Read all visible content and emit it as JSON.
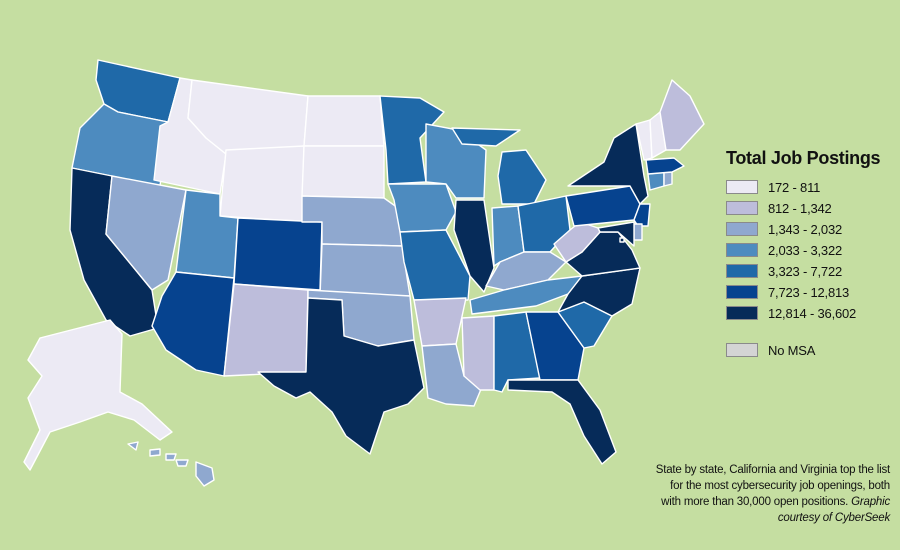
{
  "legend": {
    "title": "Total Job Postings",
    "bins": [
      {
        "label": "172 - 811",
        "color": "#eceaf4"
      },
      {
        "label": "812 - 1,342",
        "color": "#bdbddb"
      },
      {
        "label": "1,343 - 2,032",
        "color": "#8fa8cf"
      },
      {
        "label": "2,033 - 3,322",
        "color": "#4d8bbf"
      },
      {
        "label": "3,323 - 7,722",
        "color": "#1f69a8"
      },
      {
        "label": "7,723 - 12,813",
        "color": "#06438f"
      },
      {
        "label": "12,814 - 36,602",
        "color": "#062b59"
      }
    ],
    "no_msa": {
      "label": "No MSA",
      "color": "#d4d4d4"
    }
  },
  "caption": {
    "text": "State by state, California and Virginia top the list for the most cybersecurity job openings, both with more than 30,000 open positions.",
    "credit": "Graphic courtesy of CyberSeek"
  },
  "map_data": {
    "background": "#c5dea1",
    "states": [
      {
        "id": "WA",
        "bin": 4
      },
      {
        "id": "OR",
        "bin": 3
      },
      {
        "id": "CA",
        "bin": 6
      },
      {
        "id": "NV",
        "bin": 2
      },
      {
        "id": "ID",
        "bin": 0
      },
      {
        "id": "MT",
        "bin": 0
      },
      {
        "id": "WY",
        "bin": 0
      },
      {
        "id": "UT",
        "bin": 3
      },
      {
        "id": "AZ",
        "bin": 5
      },
      {
        "id": "CO",
        "bin": 5
      },
      {
        "id": "NM",
        "bin": 1
      },
      {
        "id": "ND",
        "bin": 0
      },
      {
        "id": "SD",
        "bin": 0
      },
      {
        "id": "NE",
        "bin": 2
      },
      {
        "id": "KS",
        "bin": 2
      },
      {
        "id": "OK",
        "bin": 2
      },
      {
        "id": "TX",
        "bin": 6
      },
      {
        "id": "MN",
        "bin": 4
      },
      {
        "id": "IA",
        "bin": 3
      },
      {
        "id": "MO",
        "bin": 4
      },
      {
        "id": "AR",
        "bin": 1
      },
      {
        "id": "LA",
        "bin": 2
      },
      {
        "id": "WI",
        "bin": 3
      },
      {
        "id": "IL",
        "bin": 6
      },
      {
        "id": "MI",
        "bin": 4
      },
      {
        "id": "IN",
        "bin": 3
      },
      {
        "id": "OH",
        "bin": 4
      },
      {
        "id": "KY",
        "bin": 2
      },
      {
        "id": "TN",
        "bin": 3
      },
      {
        "id": "MS",
        "bin": 1
      },
      {
        "id": "AL",
        "bin": 4
      },
      {
        "id": "GA",
        "bin": 5
      },
      {
        "id": "FL",
        "bin": 6
      },
      {
        "id": "SC",
        "bin": 4
      },
      {
        "id": "NC",
        "bin": 6
      },
      {
        "id": "VA",
        "bin": 6
      },
      {
        "id": "WV",
        "bin": 1
      },
      {
        "id": "PA",
        "bin": 5
      },
      {
        "id": "NY",
        "bin": 6
      },
      {
        "id": "NJ",
        "bin": 5
      },
      {
        "id": "DE",
        "bin": 2
      },
      {
        "id": "MD",
        "bin": 6
      },
      {
        "id": "DC",
        "bin": 6
      },
      {
        "id": "CT",
        "bin": 3
      },
      {
        "id": "RI",
        "bin": 2
      },
      {
        "id": "MA",
        "bin": 5
      },
      {
        "id": "VT",
        "bin": 0
      },
      {
        "id": "NH",
        "bin": 0
      },
      {
        "id": "ME",
        "bin": 1
      },
      {
        "id": "AK",
        "bin": 0
      },
      {
        "id": "HI",
        "bin": 2
      }
    ]
  }
}
